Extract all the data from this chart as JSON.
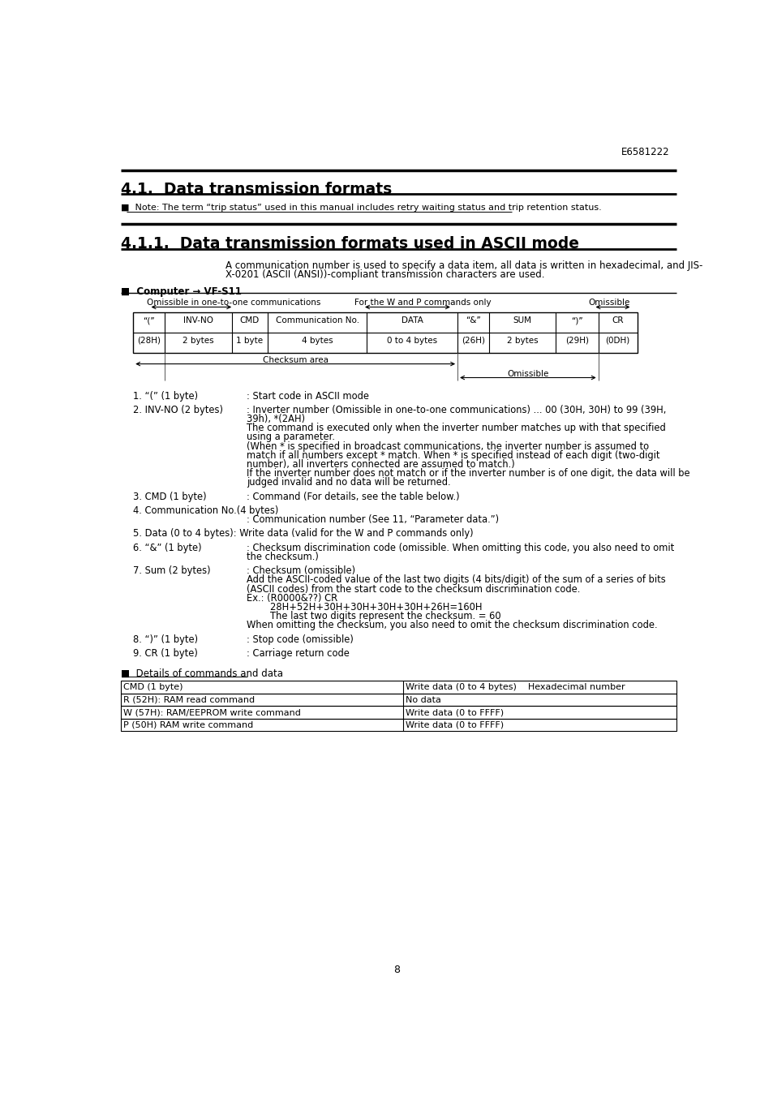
{
  "page_id": "E6581222",
  "page_number": "8",
  "section_title": "4.1.  Data transmission formats",
  "subsection_title": "4.1.1.  Data transmission formats used in ASCII mode",
  "note_text": "■  Note: The term “trip status” used in this manual includes retry waiting status and trip retention status.",
  "intro_text1": "A communication number is used to specify a data item, all data is written in hexadecimal, and JIS-",
  "intro_text2": "X-0201 (ASCII (ANSI))-compliant transmission characters are used.",
  "computer_label": "■  Computer → VF-S11",
  "omissible_label1": "Omissible in one-to-one communications",
  "omissible_label2": "For the W and P commands only",
  "omissible_label3": "Omissible",
  "table_headers_top": [
    "“(”",
    "INV-NO",
    "CMD",
    "Communication No.",
    "DATA",
    "“&”",
    "SUM",
    "“)”",
    "CR"
  ],
  "table_headers_bot": [
    "(28H)",
    "2 bytes",
    "1 byte",
    "4 bytes",
    "0 to 4 bytes",
    "(26H)",
    "2 bytes",
    "(29H)",
    "(0DH)"
  ],
  "checksum_label": "Checksum area",
  "omissible_label4": "Omissible",
  "items": [
    {
      "label": "1. “(” (1 byte)",
      "text": ": Start code in ASCII mode",
      "multiline": false
    },
    {
      "label": "2. INV-NO (2 bytes)",
      "text": ": Inverter number (Omissible in one-to-one communications) ... 00 (30H, 30H) to 99 (39H,",
      "continuation": [
        "39h), *(2AH)",
        "The command is executed only when the inverter number matches up with that specified",
        "using a parameter.",
        "(When * is specified in broadcast communications, the inverter number is assumed to",
        "match if all numbers except * match. When * is specified instead of each digit (two-digit",
        "number), all inverters connected are assumed to match.)",
        "If the inverter number does not match or if the inverter number is of one digit, the data will be",
        "judged invalid and no data will be returned."
      ],
      "multiline": true
    },
    {
      "label": "3. CMD (1 byte)",
      "text": ": Command (For details, see the table below.)",
      "multiline": false
    },
    {
      "label": "4. Communication No.(4 bytes)",
      "text": "",
      "continuation": [
        ": Communication number (See 11, “Parameter data.”)"
      ],
      "multiline": true,
      "label_alone": true
    },
    {
      "label": "5. Data (0 to 4 bytes):",
      "text": " Write data (valid for the W and P commands only)",
      "multiline": false,
      "inline": true
    },
    {
      "label": "6. “&” (1 byte)",
      "text": ": Checksum discrimination code (omissible. When omitting this code, you also need to omit",
      "continuation": [
        "the checksum.)"
      ],
      "multiline": true
    },
    {
      "label": "7. Sum (2 bytes)",
      "text": ": Checksum (omissible)",
      "continuation": [
        "Add the ASCII-coded value of the last two digits (4 bits/digit) of the sum of a series of bits",
        "(ASCII codes) from the start code to the checksum discrimination code.",
        "Ex.: (R0000&??) CR",
        "        28H+52H+30H+30H+30H+30H+26H=160H",
        "        The last two digits represent the checksum. = 60",
        "When omitting the checksum, you also need to omit the checksum discrimination code."
      ],
      "multiline": true
    },
    {
      "label": "8. “)” (1 byte)",
      "text": ": Stop code (omissible)",
      "multiline": false
    },
    {
      "label": "9. CR (1 byte)",
      "text": ": Carriage return code",
      "multiline": false
    }
  ],
  "details_title": "■  Details of commands and data",
  "cmd_table_header": [
    "CMD (1 byte)",
    "Write data (0 to 4 bytes)    Hexadecimal number"
  ],
  "cmd_table_rows": [
    [
      "R (52H): RAM read command",
      "No data"
    ],
    [
      "W (57H): RAM/EEPROM write command",
      "Write data (0 to FFFF)"
    ],
    [
      "P (50H) RAM write command",
      "Write data (0 to FFFF)"
    ]
  ],
  "background_color": "#ffffff",
  "text_color": "#000000"
}
